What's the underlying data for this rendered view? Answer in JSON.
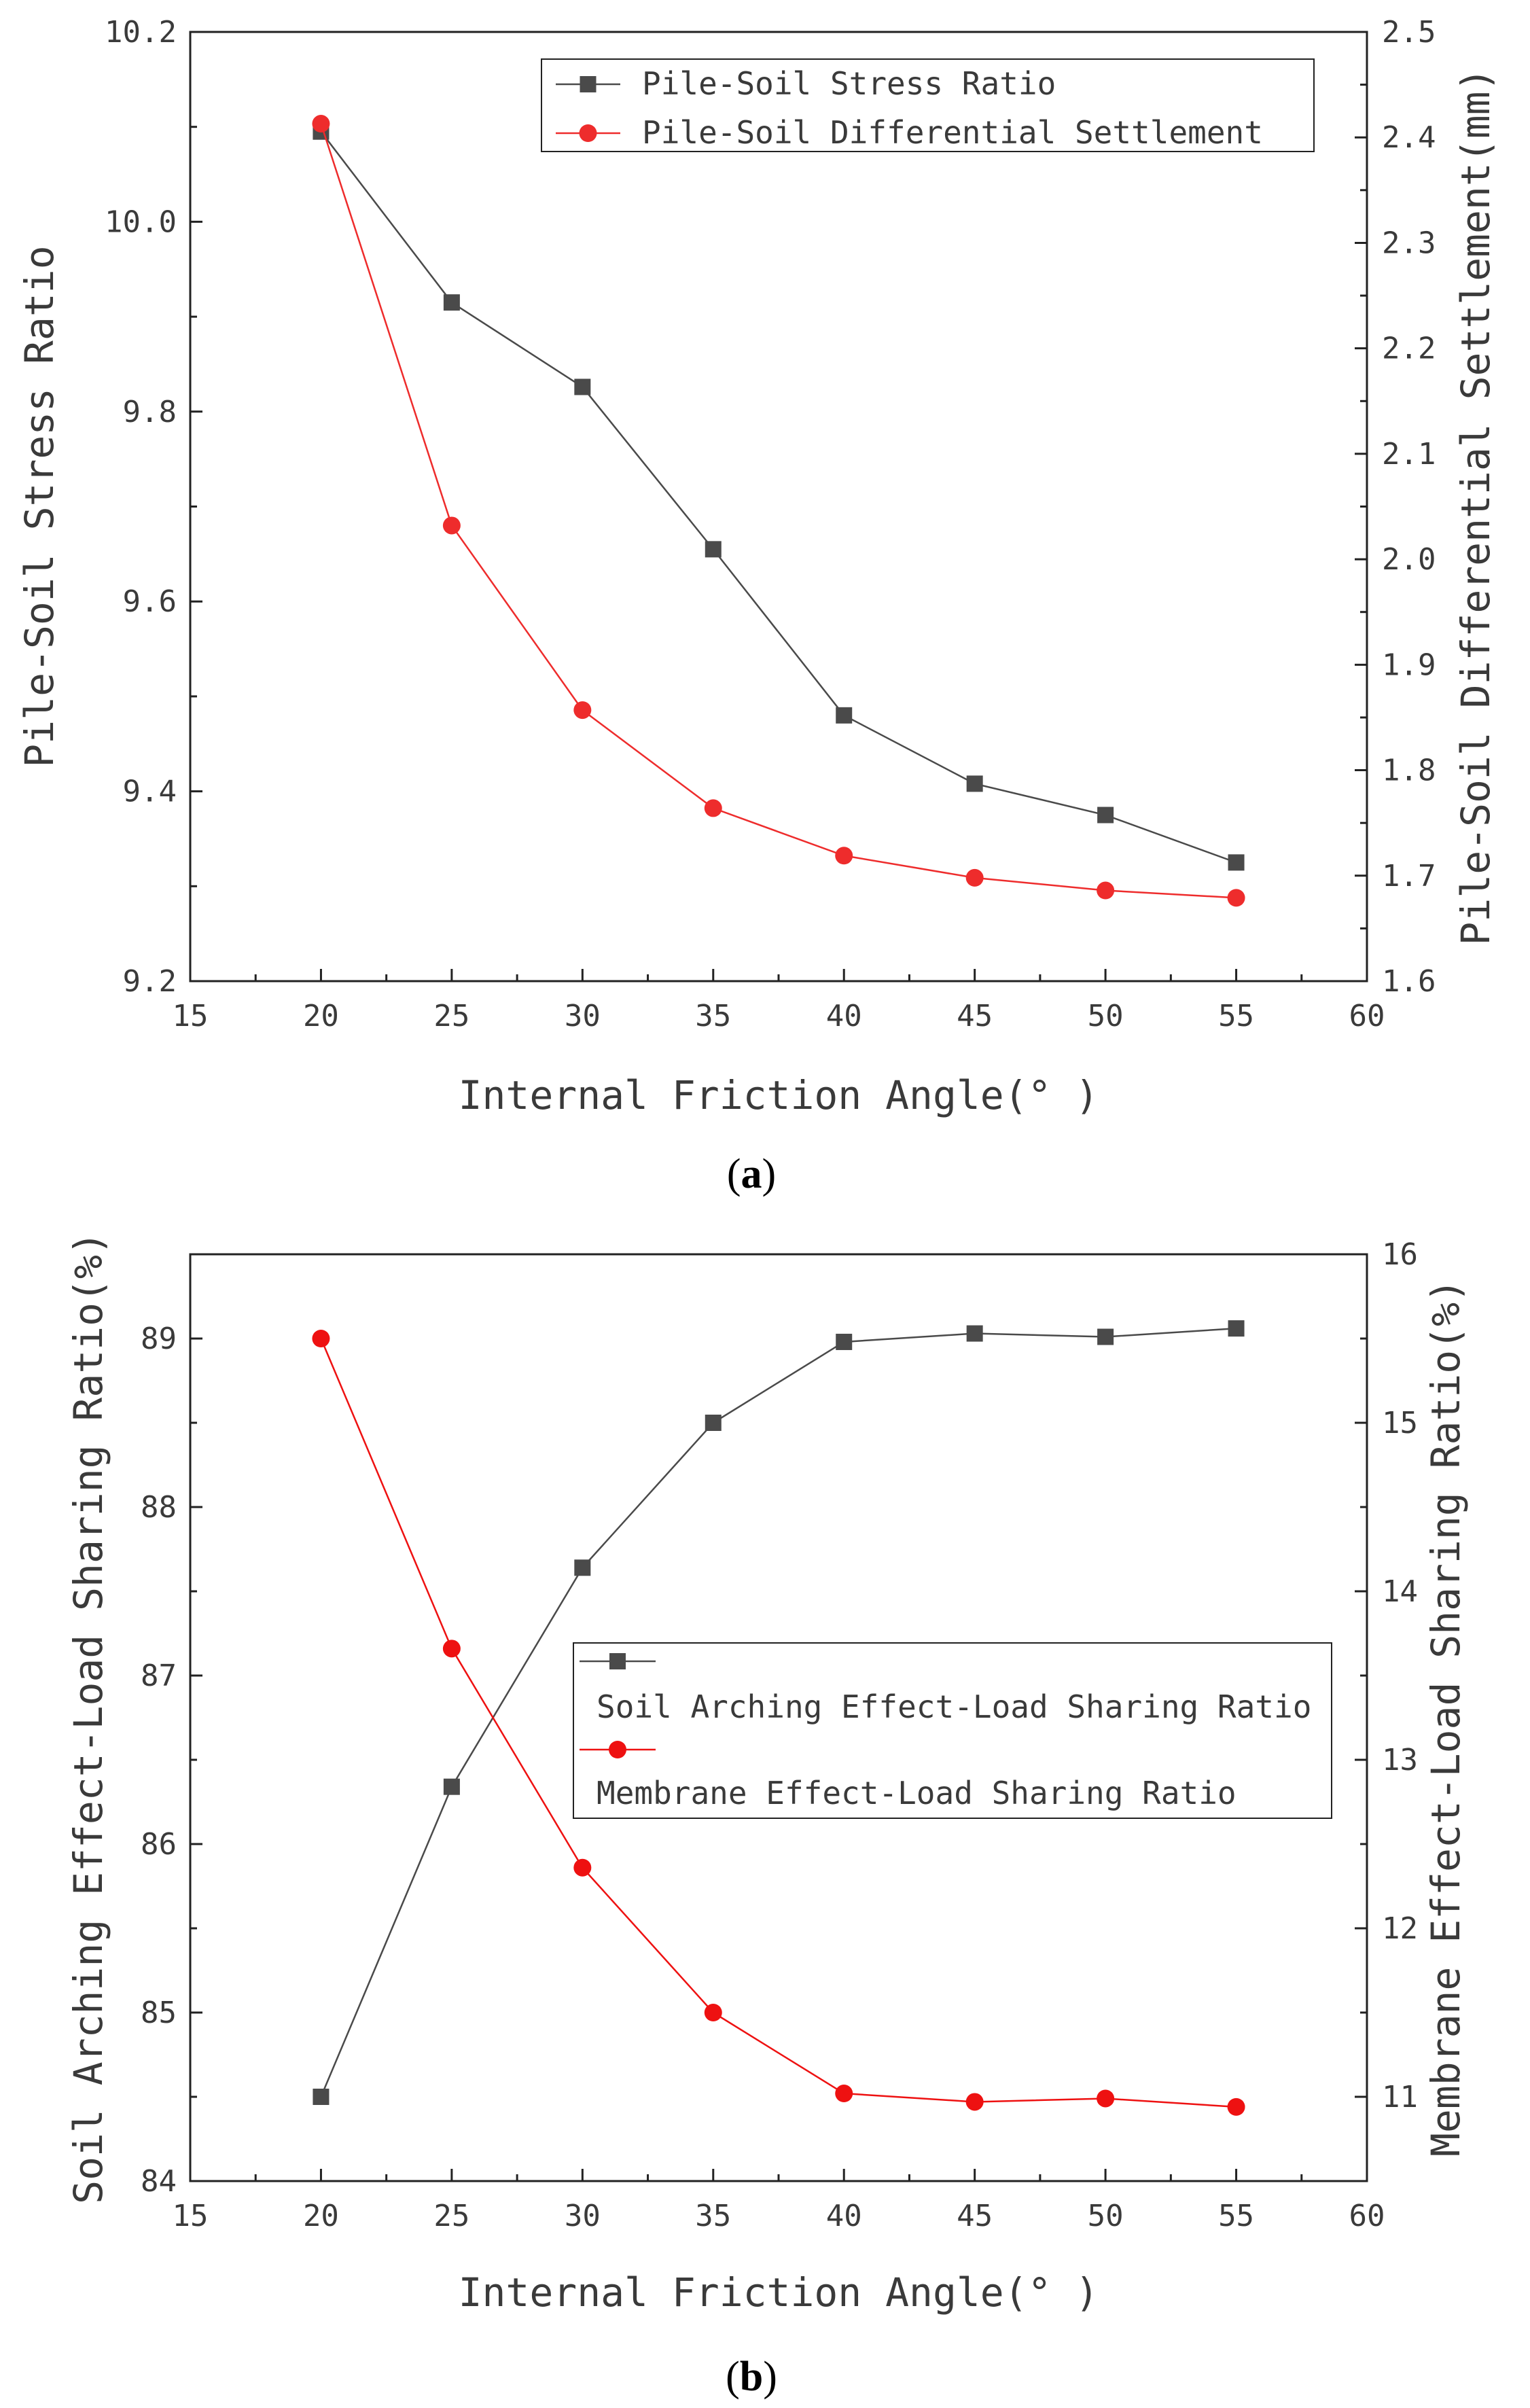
{
  "colors": {
    "series_black": "#4a4a4a",
    "series_red": "#ee2c2c",
    "axis": "#222222"
  },
  "chart_data": [
    {
      "type": "line",
      "panel_label": "a",
      "xlabel": "Internal Friction Angle(° )",
      "ylabel": "Pile-Soil Stress Ratio",
      "y2label": "Pile-Soil Differential Settlement(mm)",
      "xlim": [
        15,
        60
      ],
      "ylim": [
        9.2,
        10.2
      ],
      "y2lim": [
        1.6,
        2.5
      ],
      "xticks": [
        "15",
        "20",
        "25",
        "30",
        "35",
        "40",
        "45",
        "50",
        "55",
        "60"
      ],
      "yticks": [
        "9.2",
        "9.4",
        "9.6",
        "9.8",
        "10.0",
        "10.2"
      ],
      "y2ticks": [
        "1.6",
        "1.7",
        "1.8",
        "1.9",
        "2.0",
        "2.1",
        "2.2",
        "2.3",
        "2.4",
        "2.5"
      ],
      "grid": false,
      "legend_position": "top-right",
      "x": [
        20,
        25,
        30,
        35,
        40,
        45,
        50,
        55
      ],
      "series": [
        {
          "name": "Pile-Soil Stress Ratio",
          "axis": "left",
          "marker": "square",
          "color": "#4a4a4a",
          "values": [
            10.095,
            9.915,
            9.826,
            9.655,
            9.48,
            9.408,
            9.375,
            9.325
          ]
        },
        {
          "name": "Pile-Soil Differential Settlement",
          "axis": "right",
          "marker": "circle",
          "color": "#ee2c2c",
          "values": [
            2.413,
            2.032,
            1.857,
            1.764,
            1.719,
            1.698,
            1.686,
            1.679
          ]
        }
      ]
    },
    {
      "type": "line",
      "panel_label": "b",
      "xlabel": "Internal Friction Angle(° )",
      "ylabel": "Soil Arching Effect-Load Sharing Ratio(%)",
      "y2label": "Membrane Effect-Load Sharing Ratio(%)",
      "xlim": [
        15,
        60
      ],
      "ylim": [
        84,
        89.5
      ],
      "y2lim": [
        10.5,
        16
      ],
      "xticks": [
        "15",
        "20",
        "25",
        "30",
        "35",
        "40",
        "45",
        "50",
        "55",
        "60"
      ],
      "yticks": [
        "84",
        "85",
        "86",
        "87",
        "88",
        "89"
      ],
      "y2ticks": [
        "11",
        "12",
        "13",
        "14",
        "15",
        "16"
      ],
      "grid": false,
      "legend_position": "center-right",
      "x": [
        20,
        25,
        30,
        35,
        40,
        45,
        50,
        55
      ],
      "series": [
        {
          "name": "Soil Arching Effect-Load Sharing Ratio",
          "axis": "left",
          "marker": "square",
          "color": "#4a4a4a",
          "values": [
            84.5,
            86.34,
            87.64,
            88.5,
            88.98,
            89.03,
            89.01,
            89.06
          ]
        },
        {
          "name": "Membrane Effect-Load Sharing Ratio",
          "axis": "right",
          "marker": "circle",
          "color": "#ee1111",
          "values": [
            15.5,
            13.66,
            12.36,
            11.5,
            11.02,
            10.97,
            10.99,
            10.94
          ]
        }
      ]
    }
  ]
}
